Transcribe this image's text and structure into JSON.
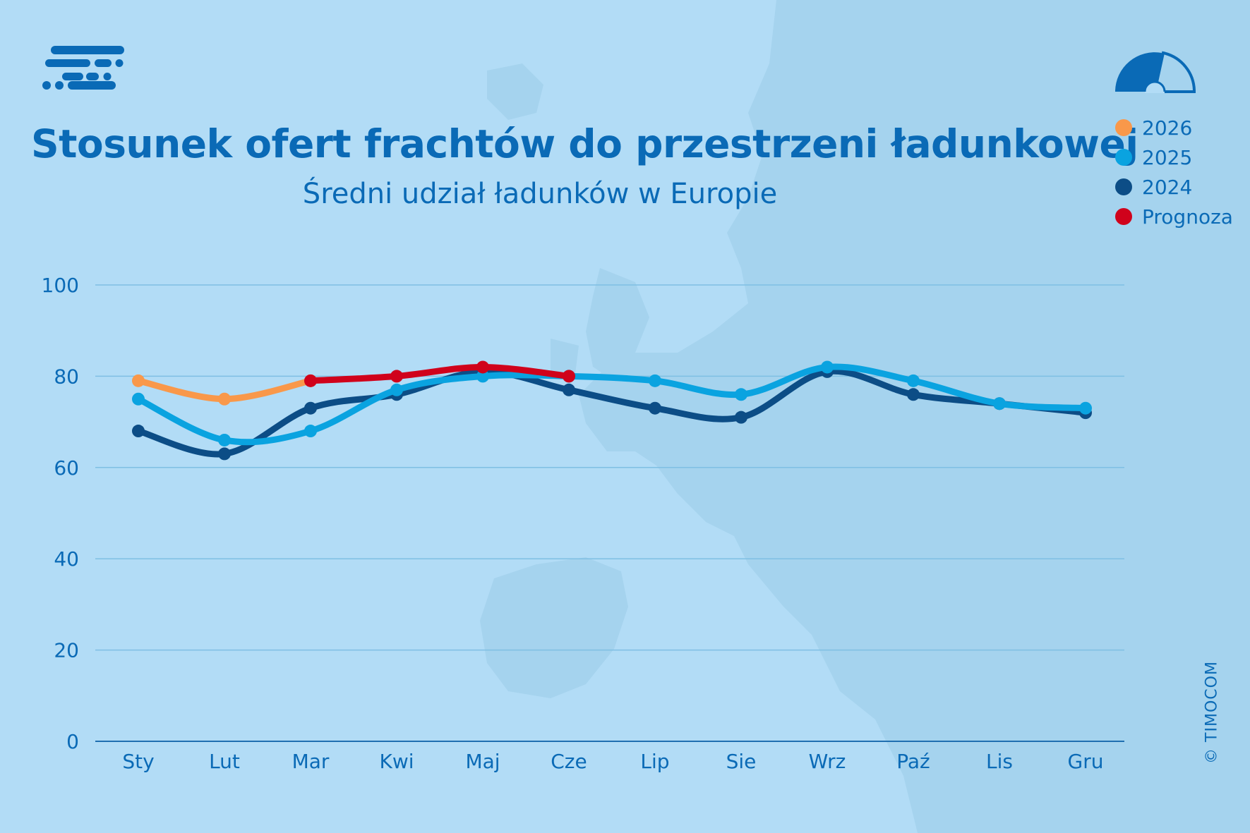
{
  "title": "Stosunek ofert frachtów do przestrzeni ładunkowej",
  "subtitle": "Średni udział ładunków w Europie",
  "copyright": "© TIMOCOM",
  "legend": [
    {
      "label": "2026",
      "color": "#f9984a"
    },
    {
      "label": "2025",
      "color": "#0aa3e0"
    },
    {
      "label": "2024",
      "color": "#0c4d86"
    },
    {
      "label": "Prognoza",
      "color": "#d0021b"
    }
  ],
  "colors": {
    "background": "#b2dcf6",
    "text": "#0a6ab6",
    "gridline": "#7fbfe3",
    "axis": "#1f6fb0"
  },
  "icons": [
    "timocom-logo-icon",
    "gauge-icon"
  ],
  "chart_data": {
    "type": "line",
    "categories": [
      "Sty",
      "Lut",
      "Mar",
      "Kwi",
      "Maj",
      "Cze",
      "Lip",
      "Sie",
      "Wrz",
      "Paź",
      "Lis",
      "Gru"
    ],
    "ylim": [
      0,
      100
    ],
    "yticks": [
      0,
      20,
      40,
      60,
      80,
      100
    ],
    "grid": true,
    "legend_position": "top-right",
    "series": [
      {
        "name": "2024",
        "color": "#0c4d86",
        "values": [
          68,
          63,
          73,
          76,
          81,
          77,
          73,
          71,
          81,
          76,
          74,
          72
        ]
      },
      {
        "name": "2025",
        "color": "#0aa3e0",
        "values": [
          75,
          66,
          68,
          77,
          80,
          80,
          79,
          76,
          82,
          79,
          74,
          73
        ]
      },
      {
        "name": "2026",
        "color": "#f9984a",
        "values": [
          79,
          75,
          79,
          null,
          null,
          null,
          null,
          null,
          null,
          null,
          null,
          null
        ]
      },
      {
        "name": "Prognoza",
        "color": "#d0021b",
        "values": [
          null,
          null,
          79,
          80,
          82,
          80,
          null,
          null,
          null,
          null,
          null,
          null
        ]
      }
    ]
  }
}
